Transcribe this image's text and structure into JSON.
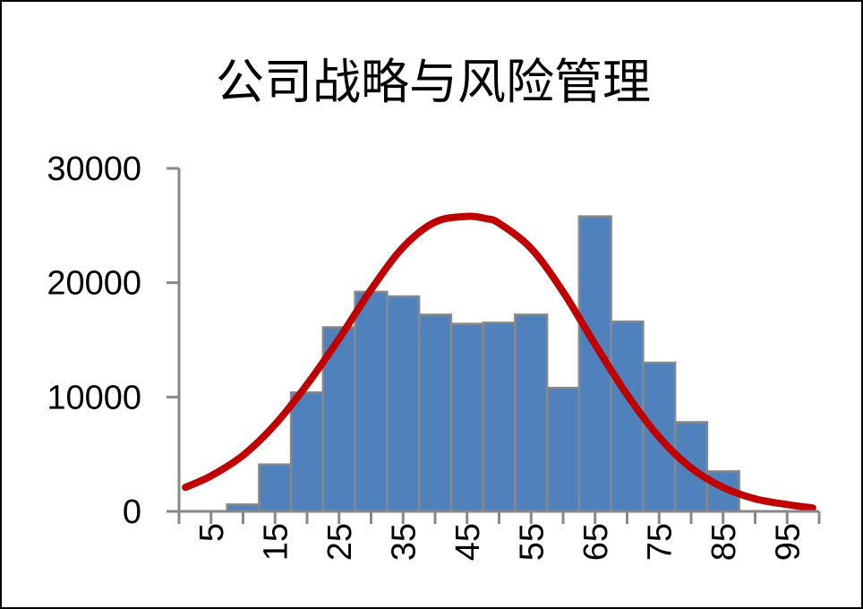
{
  "chart_data": {
    "type": "bar",
    "title": "公司战略与风险管理",
    "xlabel": "",
    "ylabel": "",
    "bin_width": 5,
    "x_tick_labels": [
      "5",
      "15",
      "25",
      "35",
      "45",
      "55",
      "65",
      "75",
      "85",
      "95"
    ],
    "y_tick_labels": [
      "0",
      "10000",
      "20000",
      "30000"
    ],
    "ylim": [
      0,
      30000
    ],
    "grid": false,
    "legend": "none",
    "series": [
      {
        "type": "bar",
        "x": [
          10,
          15,
          20,
          25,
          30,
          35,
          40,
          45,
          50,
          55,
          60,
          65,
          70,
          75,
          80,
          85
        ],
        "values": [
          600,
          4100,
          10400,
          16100,
          19200,
          18800,
          17200,
          16400,
          16500,
          17200,
          10800,
          25800,
          16600,
          13000,
          7800,
          3500
        ],
        "color": "#4f81bd",
        "edge_color": "#888888"
      },
      {
        "type": "line",
        "x": [
          1,
          5,
          10,
          15,
          20,
          25,
          30,
          35,
          40,
          45,
          48,
          50,
          55,
          60,
          65,
          70,
          75,
          80,
          85,
          90,
          95,
          99
        ],
        "values": [
          2100,
          3100,
          4900,
          7600,
          11100,
          15100,
          19400,
          23100,
          25300,
          25800,
          25600,
          25200,
          23000,
          19200,
          14600,
          10200,
          6500,
          3800,
          2100,
          1100,
          600,
          300
        ],
        "color": "#c00000"
      }
    ]
  }
}
